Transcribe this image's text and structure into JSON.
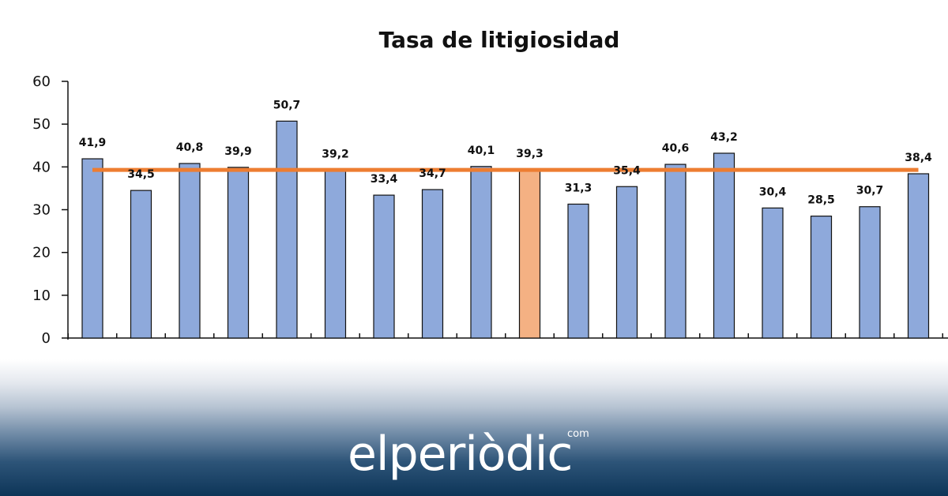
{
  "chart_data": {
    "type": "bar",
    "title": "Tasa de litigiosidad",
    "xlabel": "",
    "ylabel": "",
    "ylim": [
      0,
      60
    ],
    "yticks": [
      0,
      10,
      20,
      30,
      40,
      50,
      60
    ],
    "grid": false,
    "values": [
      41.9,
      34.5,
      40.8,
      39.9,
      50.7,
      39.2,
      33.4,
      34.7,
      40.1,
      39.3,
      31.3,
      35.4,
      40.6,
      43.2,
      30.4,
      28.5,
      30.7,
      38.4
    ],
    "data_labels": [
      "41,9",
      "34,5",
      "40,8",
      "39,9",
      "50,7",
      "39,2",
      "33,4",
      "34,7",
      "40,1",
      "39,3",
      "31,3",
      "35,4",
      "40,6",
      "43,2",
      "30,4",
      "28,5",
      "30,7",
      "38,4"
    ],
    "highlight_index": 9,
    "reference_line": {
      "value": 39.3,
      "color": "#ED7D31"
    },
    "bar_color": "#8EA9DB",
    "highlight_color": "#F4B183"
  },
  "brand": {
    "name": "elperiòdic",
    "suffix": "com"
  }
}
